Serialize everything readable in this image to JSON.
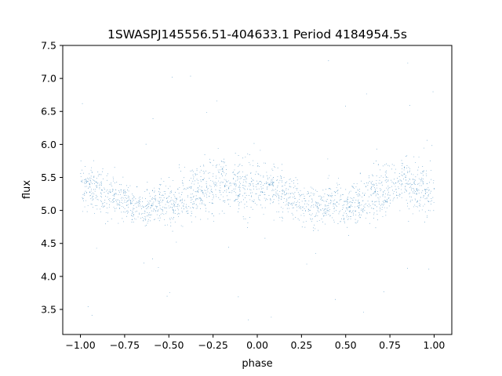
{
  "chart_data": {
    "type": "scatter",
    "title": "1SWASPJ145556.51-404633.1 Period 4184954.5s",
    "xlabel": "phase",
    "ylabel": "flux",
    "xlim": [
      -1.1,
      1.1
    ],
    "ylim": [
      3.12,
      7.5
    ],
    "xticks": [
      -1.0,
      -0.75,
      -0.5,
      -0.25,
      0.0,
      0.25,
      0.5,
      0.75,
      1.0
    ],
    "xtick_labels": [
      "−1.00",
      "−0.75",
      "−0.50",
      "−0.25",
      "0.00",
      "0.25",
      "0.50",
      "0.75",
      "1.00"
    ],
    "yticks": [
      3.5,
      4.0,
      4.5,
      5.0,
      5.5,
      6.0,
      6.5,
      7.0,
      7.5
    ],
    "ytick_labels": [
      "3.5",
      "4.0",
      "4.5",
      "5.0",
      "5.5",
      "6.0",
      "6.5",
      "7.0",
      "7.5"
    ],
    "grid": false,
    "legend": "none",
    "point_color": "#1f77b4",
    "series": [
      {
        "profile_phase": [
          0.0,
          0.05,
          0.1,
          0.15,
          0.2,
          0.25,
          0.3,
          0.35,
          0.4,
          0.45,
          0.5,
          0.55,
          0.6,
          0.65,
          0.7,
          0.75,
          0.8,
          0.85,
          0.9,
          0.95,
          1.0
        ],
        "median_flux": [
          5.4,
          5.4,
          5.35,
          5.25,
          5.2,
          5.15,
          5.05,
          5.05,
          5.1,
          5.15,
          5.05,
          5.1,
          5.2,
          5.25,
          5.3,
          5.35,
          5.45,
          5.4,
          5.35,
          5.35,
          5.3
        ],
        "upper_flux": [
          5.85,
          5.75,
          5.7,
          5.6,
          5.55,
          5.5,
          5.4,
          5.35,
          5.45,
          5.5,
          5.45,
          5.55,
          5.65,
          5.7,
          5.75,
          5.8,
          5.9,
          5.85,
          5.85,
          5.9,
          5.8
        ],
        "lower_flux": [
          4.95,
          4.95,
          4.9,
          4.85,
          4.85,
          4.8,
          4.75,
          4.75,
          4.8,
          4.8,
          4.7,
          4.75,
          4.8,
          4.85,
          4.85,
          4.9,
          4.95,
          4.95,
          4.9,
          4.9,
          4.85
        ],
        "min_flux": 3.3,
        "max_flux": 7.3,
        "point_count_shown": 9000
      }
    ]
  }
}
